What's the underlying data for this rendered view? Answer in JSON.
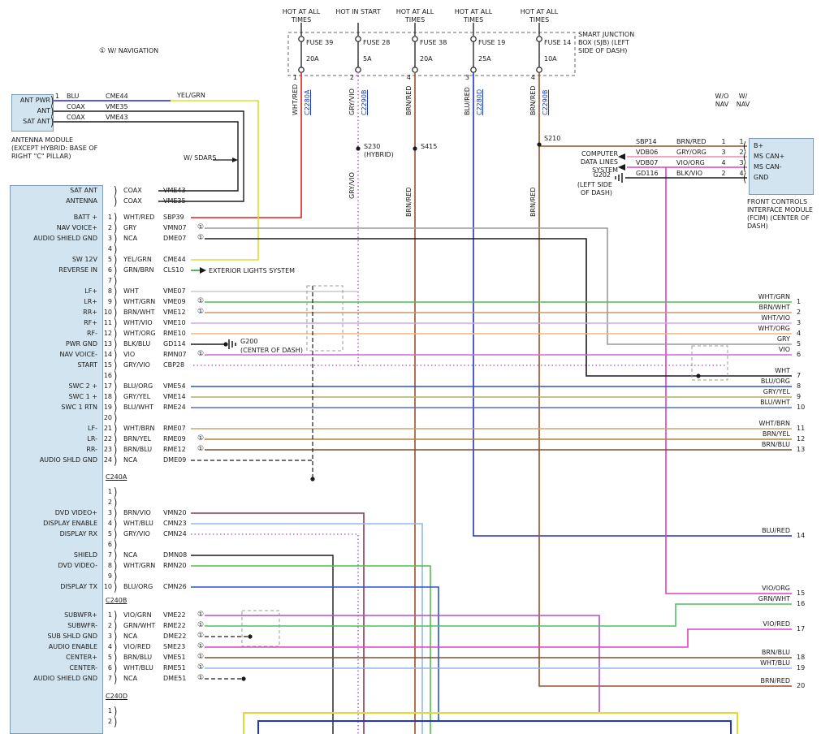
{
  "colors": {
    "WHT/RED": "#de2120",
    "GRY/VIO": "#b469cf",
    "BRN/RED": "#9c4f2a",
    "BLU/RED": "#2431c8",
    "YEL/GRN": "#dede30",
    "BLU": "#2020dd",
    "COAX": "#1a1a1a",
    "GRY": "#9a9a9a",
    "BLK": "#1a1a1a",
    "GRN/BRN": "#2e9e40",
    "WHT": "#c9c9c9",
    "WHT/GRN": "#4fbf4f",
    "BRN/WHT": "#c89a66",
    "WHT/VIO": "#cfa8e8",
    "WHT/ORG": "#f2b878",
    "BLK/BLU": "#1a1a1a",
    "VIO": "#cf6ad4",
    "BLU/ORG": "#2a50d8",
    "GRY/YEL": "#b4ae6a",
    "BLU/WHT": "#5868d8",
    "WHT/BRN": "#cfa470",
    "BRN/YEL": "#b08430",
    "BRN/BLU": "#7a5238",
    "NCA": "#1a1a1a",
    "BRN/VIO": "#8a3a50",
    "WHT/BLU": "#92b8e8",
    "VIO/GRN": "#b050d0",
    "GRN/WHT": "#4fbf5f",
    "VIO/RED": "#e040c0",
    "VIO/ORG": "#e040c0",
    "GRY/ORG": "#f088a8",
    "BLK/VIO": "#1a1a1a",
    "box_fill": "#d2e4ef",
    "box_border": "#7d9cb5",
    "bottom_yellow": "#dede30",
    "bottom_blue": "#2335cf"
  },
  "top_note": {
    "mark": "①",
    "text": "W/ NAVIGATION"
  },
  "sjb": {
    "label": "SMART JUNCTION BOX (SJB) (LEFT SIDE OF DASH)"
  },
  "fuses": [
    {
      "condition": "HOT AT ALL TIMES",
      "name": "FUSE 39",
      "amps": "20A",
      "pin": "1",
      "wire": "WHT/RED",
      "connector": "C2280A"
    },
    {
      "condition": "HOT IN START",
      "name": "FUSE 28",
      "amps": "5A",
      "pin": "2",
      "wire": "GRY/VIO",
      "connector": "C2290B"
    },
    {
      "condition": "HOT AT ALL TIMES",
      "name": "FUSE 38",
      "amps": "20A",
      "pin": "4",
      "wire": "BRN/RED",
      "connector": ""
    },
    {
      "condition": "HOT AT ALL TIMES",
      "name": "FUSE 19",
      "amps": "25A",
      "pin": "3",
      "wire": "BLU/RED",
      "connector": "C2280D"
    },
    {
      "condition": "HOT AT ALL TIMES",
      "name": "FUSE 14",
      "amps": "10A",
      "pin": "4",
      "wire": "BRN/RED",
      "connector": "C2290B"
    }
  ],
  "splices": [
    {
      "name": "S230",
      "note": "(HYBRID)"
    },
    {
      "name": "S415",
      "note": ""
    },
    {
      "name": "S210",
      "note": ""
    }
  ],
  "mid_labels": [
    "GRY/VIO",
    "BRN/RED",
    "BRN/RED"
  ],
  "antenna": {
    "pins": [
      {
        "pin": "1",
        "name": "ANT PWR",
        "wire": "BLU",
        "code": "CME44"
      },
      {
        "pin": "",
        "name": "ANT",
        "wire": "COAX",
        "code": "VME35"
      },
      {
        "pin": "",
        "name": "SAT ANT",
        "wire": "COAX",
        "code": "VME43"
      }
    ],
    "yelgrn_label": "YEL/GRN",
    "caption": "ANTENNA MODULE (EXCEPT HYBRID: BASE OF RIGHT \"C\" PILLAR)"
  },
  "references": {
    "exterior_lights": "EXTERIOR LIGHTS SYSTEM",
    "sdars": "W/ SDARS"
  },
  "grounds": {
    "g200": {
      "name": "G200",
      "loc": "(CENTER OF DASH)"
    },
    "g202": {
      "name": "G202",
      "loc": "(LEFT SIDE OF DASH)"
    }
  },
  "fcim": {
    "columns": [
      "W/O NAV",
      "W/ NAV"
    ],
    "rows": [
      {
        "code": "SBP14",
        "wire": "BRN/RED",
        "wo_nav": "1",
        "w_nav": "1",
        "pin": "B+"
      },
      {
        "code": "VDB06",
        "wire": "GRY/ORG",
        "wo_nav": "3",
        "w_nav": "2",
        "pin": "MS CAN+"
      },
      {
        "code": "VDB07",
        "wire": "VIO/ORG",
        "wo_nav": "4",
        "w_nav": "3",
        "pin": "MS CAN-"
      },
      {
        "code": "GD116",
        "wire": "BLK/VIO",
        "wo_nav": "2",
        "w_nav": "4",
        "pin": "GND"
      }
    ],
    "system_ref": "COMPUTER DATA LINES SYSTEM",
    "caption": "FRONT CONTROLS INTERFACE MODULE (FCIM) (CENTER OF DASH)"
  },
  "main_connector": {
    "groups": [
      {
        "label": "C240A",
        "pins": [
          {
            "num": "",
            "wire": "COAX",
            "code": "VME43",
            "mark": "",
            "name": "SAT ANT"
          },
          {
            "num": "",
            "wire": "COAX",
            "code": "VME35",
            "mark": "",
            "name": "ANTENNA"
          },
          {
            "num": "1",
            "wire": "WHT/RED",
            "code": "SBP39",
            "mark": "",
            "name": "BATT +"
          },
          {
            "num": "2",
            "wire": "GRY",
            "code": "VMN07",
            "mark": "①",
            "name": "NAV VOICE+"
          },
          {
            "num": "3",
            "wire": "NCA",
            "code": "DME07",
            "mark": "①",
            "name": "AUDIO SHIELD GND"
          },
          {
            "num": "4",
            "wire": "",
            "code": "",
            "mark": "",
            "name": ""
          },
          {
            "num": "5",
            "wire": "YEL/GRN",
            "code": "CME44",
            "mark": "",
            "name": "SW 12V"
          },
          {
            "num": "6",
            "wire": "GRN/BRN",
            "code": "CLS10",
            "mark": "",
            "name": "REVERSE IN"
          },
          {
            "num": "7",
            "wire": "",
            "code": "",
            "mark": "",
            "name": ""
          },
          {
            "num": "8",
            "wire": "WHT",
            "code": "VME07",
            "mark": "",
            "name": "LF+"
          },
          {
            "num": "9",
            "wire": "WHT/GRN",
            "code": "VME09",
            "mark": "①",
            "name": "LR+"
          },
          {
            "num": "10",
            "wire": "BRN/WHT",
            "code": "VME12",
            "mark": "①",
            "name": "RR+"
          },
          {
            "num": "11",
            "wire": "WHT/VIO",
            "code": "VME10",
            "mark": "",
            "name": "RF+"
          },
          {
            "num": "12",
            "wire": "WHT/ORG",
            "code": "RME10",
            "mark": "",
            "name": "RF-"
          },
          {
            "num": "13",
            "wire": "BLK/BLU",
            "code": "GD114",
            "mark": "",
            "name": "PWR GND"
          },
          {
            "num": "14",
            "wire": "VIO",
            "code": "RMN07",
            "mark": "①",
            "name": "NAV VOICE-"
          },
          {
            "num": "15",
            "wire": "GRY/VIO",
            "code": "CBP28",
            "mark": "",
            "name": "START"
          },
          {
            "num": "16",
            "wire": "",
            "code": "",
            "mark": "",
            "name": ""
          },
          {
            "num": "17",
            "wire": "BLU/ORG",
            "code": "VME54",
            "mark": "",
            "name": "SWC 2 +"
          },
          {
            "num": "18",
            "wire": "GRY/YEL",
            "code": "VME14",
            "mark": "",
            "name": "SWC 1 +"
          },
          {
            "num": "19",
            "wire": "BLU/WHT",
            "code": "RME24",
            "mark": "",
            "name": "SWC 1 RTN"
          },
          {
            "num": "20",
            "wire": "",
            "code": "",
            "mark": "",
            "name": ""
          },
          {
            "num": "21",
            "wire": "WHT/BRN",
            "code": "RME07",
            "mark": "",
            "name": "LF-"
          },
          {
            "num": "22",
            "wire": "BRN/YEL",
            "code": "RME09",
            "mark": "①",
            "name": "LR-"
          },
          {
            "num": "23",
            "wire": "BRN/BLU",
            "code": "RME12",
            "mark": "①",
            "name": "RR-"
          },
          {
            "num": "24",
            "wire": "NCA",
            "code": "DME09",
            "mark": "",
            "name": "AUDIO SHLD GND"
          }
        ]
      },
      {
        "label": "C240B",
        "pins": [
          {
            "num": "1",
            "wire": "",
            "code": "",
            "mark": "",
            "name": ""
          },
          {
            "num": "2",
            "wire": "",
            "code": "",
            "mark": "",
            "name": ""
          },
          {
            "num": "3",
            "wire": "BRN/VIO",
            "code": "VMN20",
            "mark": "",
            "name": "DVD VIDEO+"
          },
          {
            "num": "4",
            "wire": "WHT/BLU",
            "code": "CMN23",
            "mark": "",
            "name": "DISPLAY ENABLE"
          },
          {
            "num": "5",
            "wire": "GRY/VIO",
            "code": "CMN24",
            "mark": "",
            "name": "DISPLAY RX"
          },
          {
            "num": "6",
            "wire": "",
            "code": "",
            "mark": "",
            "name": ""
          },
          {
            "num": "7",
            "wire": "NCA",
            "code": "DMN08",
            "mark": "",
            "name": "SHIELD"
          },
          {
            "num": "8",
            "wire": "WHT/GRN",
            "code": "RMN20",
            "mark": "",
            "name": "DVD VIDEO-"
          },
          {
            "num": "9",
            "wire": "",
            "code": "",
            "mark": "",
            "name": ""
          },
          {
            "num": "10",
            "wire": "BLU/ORG",
            "code": "CMN26",
            "mark": "",
            "name": "DISPLAY TX"
          }
        ]
      },
      {
        "label": "C240D",
        "pins": [
          {
            "num": "1",
            "wire": "VIO/GRN",
            "code": "VME22",
            "mark": "①",
            "name": "SUBWFR+"
          },
          {
            "num": "2",
            "wire": "GRN/WHT",
            "code": "RME22",
            "mark": "①",
            "name": "SUBWFR-"
          },
          {
            "num": "3",
            "wire": "NCA",
            "code": "DME22",
            "mark": "①",
            "name": "SUB SHLD GND"
          },
          {
            "num": "4",
            "wire": "VIO/RED",
            "code": "SME23",
            "mark": "①",
            "name": "AUDIO ENABLE"
          },
          {
            "num": "5",
            "wire": "BRN/BLU",
            "code": "VME51",
            "mark": "①",
            "name": "CENTER+"
          },
          {
            "num": "6",
            "wire": "WHT/BLU",
            "code": "RME51",
            "mark": "①",
            "name": "CENTER-"
          },
          {
            "num": "7",
            "wire": "NCA",
            "code": "DME51",
            "mark": "①",
            "name": "AUDIO SHIELD GND"
          }
        ]
      },
      {
        "label": "",
        "pins": [
          {
            "num": "1",
            "wire": "",
            "code": "",
            "mark": "",
            "name": ""
          },
          {
            "num": "2",
            "wire": "",
            "code": "",
            "mark": "",
            "name": ""
          }
        ]
      }
    ]
  },
  "right_wires": [
    {
      "label": "WHT/GRN",
      "num": "1"
    },
    {
      "label": "BRN/WHT",
      "num": "2"
    },
    {
      "label": "WHT/VIO",
      "num": "3"
    },
    {
      "label": "WHT/ORG",
      "num": "4"
    },
    {
      "label": "GRY",
      "num": "5"
    },
    {
      "label": "VIO",
      "num": "6"
    },
    {
      "label": "WHT",
      "num": "7"
    },
    {
      "label": "BLU/ORG",
      "num": "8"
    },
    {
      "label": "GRY/YEL",
      "num": "9"
    },
    {
      "label": "BLU/WHT",
      "num": "10"
    },
    {
      "label": "WHT/BRN",
      "num": "11"
    },
    {
      "label": "BRN/YEL",
      "num": "12"
    },
    {
      "label": "BRN/BLU",
      "num": "13"
    },
    {
      "label": "BLU/RED",
      "num": "14"
    },
    {
      "label": "VIO/ORG",
      "num": "15"
    },
    {
      "label": "GRN/WHT",
      "num": "16"
    },
    {
      "label": "VIO/RED",
      "num": "17"
    },
    {
      "label": "BRN/BLU",
      "num": "18"
    },
    {
      "label": "WHT/BLU",
      "num": "19"
    },
    {
      "label": "BRN/RED",
      "num": "20"
    }
  ]
}
